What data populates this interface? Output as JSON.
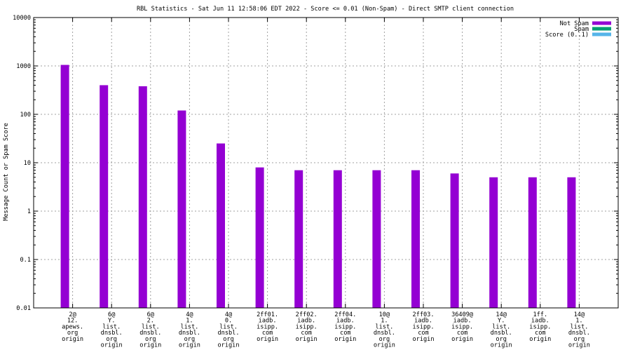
{
  "chart_data": {
    "type": "bar",
    "title": "RBL Statistics - Sat Jun 11 12:58:06 EDT 2022 - Score <= 0.01 (Non-Spam) - Direct SMTP client connection",
    "xlabel": "",
    "ylabel": "Message Count or Spam Score",
    "yscale": "log",
    "ylim": [
      0.01,
      10000
    ],
    "yticks": [
      "0.01",
      "0.1",
      "1",
      "10",
      "100",
      "1000",
      "10000"
    ],
    "grid": true,
    "legend_position": "top-right",
    "categories": [
      [
        "2@",
        "12.",
        "apews.",
        "org",
        "origin"
      ],
      [
        "6@",
        "Y.",
        "list.",
        "dnsbl.",
        "org",
        "origin"
      ],
      [
        "6@",
        "2.",
        "list.",
        "dnsbl.",
        "org",
        "origin"
      ],
      [
        "4@",
        "1.",
        "list.",
        "dnsbl.",
        "org",
        "origin"
      ],
      [
        "4@",
        "0.",
        "list.",
        "dnsbl.",
        "org",
        "origin"
      ],
      [
        "2ff01.",
        "iadb.",
        "isipp.",
        "com",
        "origin"
      ],
      [
        "2ff02.",
        "iadb.",
        "isipp.",
        "com",
        "origin"
      ],
      [
        "2ff04.",
        "iadb.",
        "isipp.",
        "com",
        "origin"
      ],
      [
        "10@",
        "1.",
        "list.",
        "dnsbl.",
        "org",
        "origin"
      ],
      [
        "2ff03.",
        "iadb.",
        "isipp.",
        "com",
        "origin"
      ],
      [
        "36409@",
        "iadb.",
        "isipp.",
        "com",
        "origin"
      ],
      [
        "14@",
        "Y.",
        "list.",
        "dnsbl.",
        "org",
        "origin"
      ],
      [
        "1ff.",
        "iadb.",
        "isipp.",
        "com",
        "origin"
      ],
      [
        "14@",
        "1.",
        "list.",
        "dnsbl.",
        "org",
        "origin"
      ]
    ],
    "series": [
      {
        "name": "Not Spam",
        "color": "#9400d3",
        "values": [
          1050,
          400,
          380,
          120,
          25,
          8,
          7,
          7,
          7,
          7,
          6,
          5,
          5,
          5
        ]
      },
      {
        "name": "Spam",
        "color": "#009e73",
        "values": [
          0,
          0,
          0,
          0,
          0,
          0,
          0,
          0,
          0,
          0,
          0,
          0,
          0,
          0
        ]
      },
      {
        "name": "Score (0..1)",
        "color": "#56b4e9",
        "values": [
          0,
          0,
          0,
          0,
          0,
          0,
          0,
          0,
          0,
          0,
          0,
          0,
          0,
          0
        ]
      }
    ]
  }
}
